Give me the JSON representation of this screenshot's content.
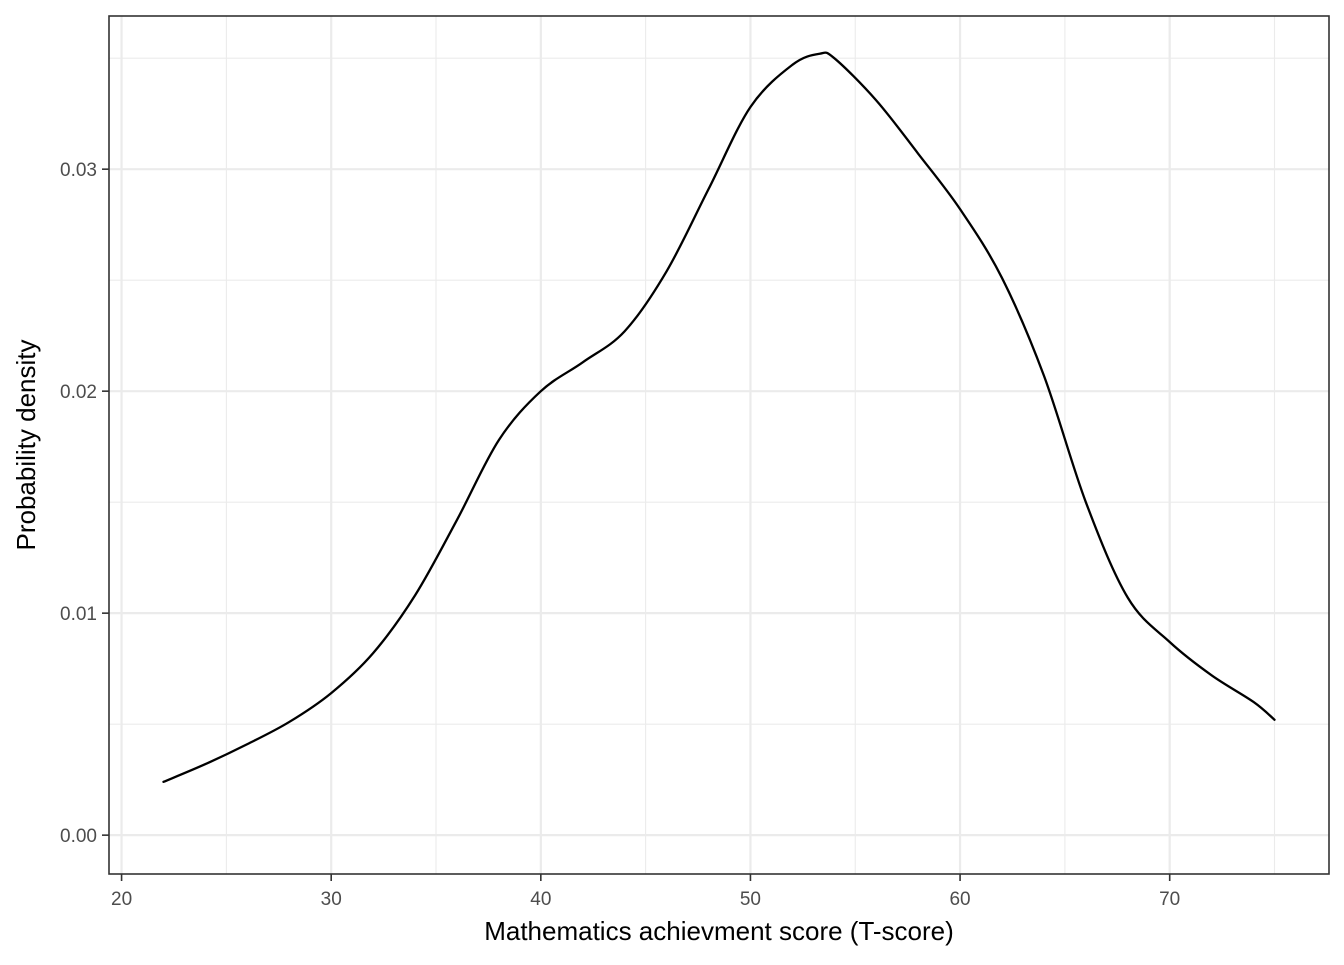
{
  "chart_data": {
    "type": "line",
    "title": "",
    "xlabel": "Mathematics achievment score (T-score)",
    "ylabel": "Probability density",
    "xlim": [
      19.4,
      77.6
    ],
    "ylim": [
      -0.00175,
      0.0369
    ],
    "x_ticks": [
      20,
      30,
      40,
      50,
      60,
      70
    ],
    "x_tick_labels": [
      "20",
      "30",
      "40",
      "50",
      "60",
      "70"
    ],
    "y_ticks": [
      0.0,
      0.01,
      0.02,
      0.03
    ],
    "y_tick_labels": [
      "0.00",
      "0.01",
      "0.02",
      "0.03"
    ],
    "x_minor_ticks": [
      25,
      35,
      45,
      55,
      65,
      75
    ],
    "y_minor_ticks": [
      0.005,
      0.015,
      0.025,
      0.035
    ],
    "grid": true,
    "legend": "none",
    "colors": {
      "line": "#000000",
      "grid": "#ebebeb",
      "panel_border": "#333333",
      "tick_text": "#4d4d4d"
    },
    "series": [
      {
        "x": [
          22,
          24,
          26,
          28,
          30,
          32,
          34,
          36,
          38,
          40,
          42,
          44,
          46,
          48,
          50,
          52,
          53.3,
          54,
          56,
          58,
          60,
          62,
          64,
          66,
          68,
          70,
          72,
          74,
          75
        ],
        "y": [
          0.0024,
          0.0032,
          0.0041,
          0.0051,
          0.0064,
          0.0082,
          0.0108,
          0.0142,
          0.0178,
          0.02,
          0.0213,
          0.0227,
          0.0254,
          0.0291,
          0.0328,
          0.0347,
          0.0352,
          0.035,
          0.0331,
          0.0307,
          0.0282,
          0.0251,
          0.0207,
          0.015,
          0.0107,
          0.0087,
          0.0072,
          0.006,
          0.0052
        ]
      }
    ]
  }
}
